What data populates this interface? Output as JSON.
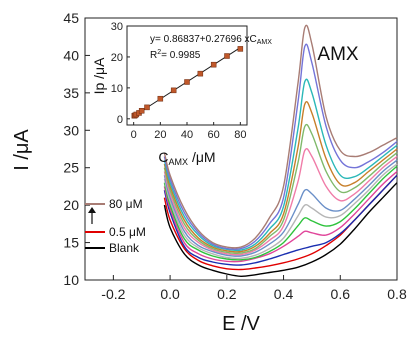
{
  "chart_data": [
    {
      "type": "line",
      "xlabel": "E /V",
      "ylabel": "I /μA",
      "xlim": [
        -0.3,
        0.8
      ],
      "ylim": [
        10,
        45
      ],
      "x_ticks": [
        "-0.2",
        "0.0",
        "0.2",
        "0.4",
        "0.6",
        "0.8"
      ],
      "y_ticks": [
        "10",
        "15",
        "20",
        "25",
        "30",
        "35",
        "40",
        "45"
      ],
      "annotation": "AMX",
      "legend": {
        "top": "80 μM",
        "middle": "0.5 μM",
        "bottom": "Blank",
        "arrow": "upward"
      },
      "series": [
        {
          "color": "#000000",
          "values": [
            [
              -0.02,
              20.0
            ],
            [
              0.0,
              17.0
            ],
            [
              0.05,
              13.5
            ],
            [
              0.1,
              12.0
            ],
            [
              0.15,
              11.3
            ],
            [
              0.2,
              10.8
            ],
            [
              0.25,
              10.5
            ],
            [
              0.3,
              10.7
            ],
            [
              0.35,
              11.0
            ],
            [
              0.4,
              11.3
            ],
            [
              0.45,
              11.7
            ],
            [
              0.5,
              12.4
            ],
            [
              0.55,
              13.4
            ],
            [
              0.6,
              14.8
            ],
            [
              0.65,
              16.8
            ],
            [
              0.7,
              19.0
            ],
            [
              0.75,
              21.0
            ],
            [
              0.8,
              23.0
            ]
          ]
        },
        {
          "color": "#e00000",
          "values": [
            [
              -0.02,
              21.0
            ],
            [
              0.0,
              18.0
            ],
            [
              0.05,
              14.2
            ],
            [
              0.1,
              12.6
            ],
            [
              0.15,
              11.9
            ],
            [
              0.2,
              11.5
            ],
            [
              0.25,
              11.4
            ],
            [
              0.3,
              11.6
            ],
            [
              0.35,
              11.9
            ],
            [
              0.4,
              12.3
            ],
            [
              0.45,
              12.8
            ],
            [
              0.5,
              13.5
            ],
            [
              0.55,
              14.6
            ],
            [
              0.6,
              16.0
            ],
            [
              0.65,
              18.0
            ],
            [
              0.7,
              20.0
            ],
            [
              0.75,
              22.0
            ],
            [
              0.8,
              24.0
            ]
          ]
        },
        {
          "color": "#1a2fb0",
          "values": [
            [
              -0.02,
              22.0
            ],
            [
              0.0,
              19.0
            ],
            [
              0.05,
              14.5
            ],
            [
              0.1,
              13.0
            ],
            [
              0.15,
              12.4
            ],
            [
              0.2,
              12.1
            ],
            [
              0.25,
              12.0
            ],
            [
              0.3,
              12.3
            ],
            [
              0.35,
              12.8
            ],
            [
              0.4,
              13.4
            ],
            [
              0.45,
              14.0
            ],
            [
              0.5,
              14.5
            ],
            [
              0.55,
              15.0
            ],
            [
              0.6,
              16.2
            ],
            [
              0.65,
              18.0
            ],
            [
              0.7,
              20.0
            ],
            [
              0.75,
              22.0
            ],
            [
              0.8,
              24.0
            ]
          ]
        },
        {
          "color": "#e0459a",
          "values": [
            [
              -0.02,
              22.5
            ],
            [
              0.0,
              19.5
            ],
            [
              0.05,
              15.0
            ],
            [
              0.1,
              13.5
            ],
            [
              0.15,
              12.8
            ],
            [
              0.2,
              12.5
            ],
            [
              0.25,
              12.5
            ],
            [
              0.3,
              12.9
            ],
            [
              0.35,
              13.5
            ],
            [
              0.4,
              14.5
            ],
            [
              0.45,
              15.8
            ],
            [
              0.475,
              16.5
            ],
            [
              0.5,
              16.3
            ],
            [
              0.55,
              16.0
            ],
            [
              0.6,
              17.0
            ],
            [
              0.65,
              18.8
            ],
            [
              0.7,
              20.8
            ],
            [
              0.75,
              22.8
            ],
            [
              0.8,
              24.5
            ]
          ]
        },
        {
          "color": "#2ec23c",
          "values": [
            [
              -0.02,
              23.0
            ],
            [
              0.0,
              20.0
            ],
            [
              0.05,
              15.5
            ],
            [
              0.1,
              14.0
            ],
            [
              0.15,
              13.2
            ],
            [
              0.2,
              12.8
            ],
            [
              0.25,
              12.7
            ],
            [
              0.3,
              13.0
            ],
            [
              0.35,
              13.8
            ],
            [
              0.4,
              15.0
            ],
            [
              0.45,
              17.2
            ],
            [
              0.475,
              18.3
            ],
            [
              0.5,
              17.9
            ],
            [
              0.55,
              17.2
            ],
            [
              0.6,
              17.8
            ],
            [
              0.65,
              19.5
            ],
            [
              0.7,
              21.5
            ],
            [
              0.75,
              23.5
            ],
            [
              0.8,
              25.2
            ]
          ]
        },
        {
          "color": "#b5b5b5",
          "values": [
            [
              -0.02,
              23.5
            ],
            [
              0.0,
              20.5
            ],
            [
              0.05,
              16.0
            ],
            [
              0.1,
              14.3
            ],
            [
              0.15,
              13.5
            ],
            [
              0.2,
              13.0
            ],
            [
              0.25,
              12.9
            ],
            [
              0.3,
              13.3
            ],
            [
              0.35,
              14.2
            ],
            [
              0.4,
              15.6
            ],
            [
              0.45,
              18.5
            ],
            [
              0.475,
              20.0
            ],
            [
              0.5,
              19.6
            ],
            [
              0.55,
              18.4
            ],
            [
              0.6,
              18.6
            ],
            [
              0.65,
              20.2
            ],
            [
              0.7,
              22.0
            ],
            [
              0.75,
              24.0
            ],
            [
              0.8,
              25.5
            ]
          ]
        },
        {
          "color": "#6a8fc8",
          "values": [
            [
              -0.02,
              24.0
            ],
            [
              0.0,
              21.0
            ],
            [
              0.05,
              16.5
            ],
            [
              0.1,
              14.6
            ],
            [
              0.15,
              13.8
            ],
            [
              0.2,
              13.3
            ],
            [
              0.25,
              13.2
            ],
            [
              0.3,
              13.7
            ],
            [
              0.35,
              14.8
            ],
            [
              0.4,
              16.4
            ],
            [
              0.45,
              20.0
            ],
            [
              0.475,
              22.0
            ],
            [
              0.5,
              21.5
            ],
            [
              0.55,
              19.6
            ],
            [
              0.6,
              19.3
            ],
            [
              0.65,
              20.8
            ],
            [
              0.7,
              22.6
            ],
            [
              0.75,
              24.5
            ],
            [
              0.8,
              26.0
            ]
          ]
        },
        {
          "color": "#f07ca8",
          "values": [
            [
              -0.02,
              24.5
            ],
            [
              0.0,
              21.5
            ],
            [
              0.05,
              17.0
            ],
            [
              0.1,
              15.0
            ],
            [
              0.15,
              14.0
            ],
            [
              0.2,
              13.5
            ],
            [
              0.25,
              13.4
            ],
            [
              0.3,
              14.0
            ],
            [
              0.35,
              15.3
            ],
            [
              0.4,
              17.2
            ],
            [
              0.45,
              23.0
            ],
            [
              0.475,
              27.3
            ],
            [
              0.5,
              26.5
            ],
            [
              0.55,
              22.5
            ],
            [
              0.6,
              20.6
            ],
            [
              0.65,
              21.5
            ],
            [
              0.7,
              23.2
            ],
            [
              0.75,
              25.0
            ],
            [
              0.8,
              26.5
            ]
          ]
        },
        {
          "color": "#7fb96a",
          "values": [
            [
              -0.02,
              25.0
            ],
            [
              0.0,
              22.0
            ],
            [
              0.05,
              17.5
            ],
            [
              0.1,
              15.3
            ],
            [
              0.15,
              14.2
            ],
            [
              0.2,
              13.7
            ],
            [
              0.25,
              13.6
            ],
            [
              0.3,
              14.2
            ],
            [
              0.35,
              15.8
            ],
            [
              0.4,
              18.0
            ],
            [
              0.45,
              25.5
            ],
            [
              0.475,
              30.5
            ],
            [
              0.5,
              29.5
            ],
            [
              0.55,
              24.5
            ],
            [
              0.6,
              21.8
            ],
            [
              0.65,
              22.3
            ],
            [
              0.7,
              23.8
            ],
            [
              0.75,
              25.5
            ],
            [
              0.8,
              27.0
            ]
          ]
        },
        {
          "color": "#c77f2a",
          "values": [
            [
              -0.02,
              25.5
            ],
            [
              0.0,
              22.5
            ],
            [
              0.05,
              18.0
            ],
            [
              0.1,
              15.6
            ],
            [
              0.15,
              14.4
            ],
            [
              0.2,
              13.9
            ],
            [
              0.25,
              13.8
            ],
            [
              0.3,
              14.5
            ],
            [
              0.35,
              16.2
            ],
            [
              0.4,
              18.8
            ],
            [
              0.45,
              27.5
            ],
            [
              0.475,
              33.5
            ],
            [
              0.5,
              32.3
            ],
            [
              0.55,
              26.2
            ],
            [
              0.6,
              22.8
            ],
            [
              0.65,
              23.0
            ],
            [
              0.7,
              24.5
            ],
            [
              0.75,
              26.0
            ],
            [
              0.8,
              27.5
            ]
          ]
        },
        {
          "color": "#2ab8b8",
          "values": [
            [
              -0.02,
              26.0
            ],
            [
              0.0,
              23.0
            ],
            [
              0.05,
              18.5
            ],
            [
              0.1,
              16.0
            ],
            [
              0.15,
              14.6
            ],
            [
              0.2,
              14.1
            ],
            [
              0.25,
              14.0
            ],
            [
              0.3,
              14.8
            ],
            [
              0.35,
              16.8
            ],
            [
              0.4,
              19.8
            ],
            [
              0.45,
              30.0
            ],
            [
              0.475,
              36.5
            ],
            [
              0.5,
              35.0
            ],
            [
              0.55,
              28.0
            ],
            [
              0.6,
              24.0
            ],
            [
              0.65,
              23.8
            ],
            [
              0.7,
              25.0
            ],
            [
              0.75,
              26.5
            ],
            [
              0.8,
              28.0
            ]
          ]
        },
        {
          "color": "#7474d8",
          "values": [
            [
              -0.02,
              26.5
            ],
            [
              0.0,
              23.5
            ],
            [
              0.05,
              19.0
            ],
            [
              0.1,
              16.3
            ],
            [
              0.15,
              14.8
            ],
            [
              0.2,
              14.2
            ],
            [
              0.25,
              14.2
            ],
            [
              0.3,
              15.2
            ],
            [
              0.35,
              17.5
            ],
            [
              0.4,
              21.0
            ],
            [
              0.45,
              33.5
            ],
            [
              0.475,
              41.2
            ],
            [
              0.5,
              39.0
            ],
            [
              0.55,
              30.5
            ],
            [
              0.6,
              26.0
            ],
            [
              0.65,
              25.0
            ],
            [
              0.7,
              25.8
            ],
            [
              0.75,
              27.0
            ],
            [
              0.8,
              28.5
            ]
          ]
        },
        {
          "color": "#a87c74",
          "values": [
            [
              -0.02,
              27.0
            ],
            [
              0.0,
              24.0
            ],
            [
              0.05,
              19.5
            ],
            [
              0.1,
              16.6
            ],
            [
              0.15,
              15.0
            ],
            [
              0.2,
              14.4
            ],
            [
              0.25,
              14.4
            ],
            [
              0.3,
              15.6
            ],
            [
              0.35,
              18.3
            ],
            [
              0.4,
              22.5
            ],
            [
              0.45,
              36.0
            ],
            [
              0.475,
              43.7
            ],
            [
              0.5,
              41.5
            ],
            [
              0.55,
              31.8
            ],
            [
              0.6,
              27.3
            ],
            [
              0.65,
              26.5
            ],
            [
              0.7,
              27.0
            ],
            [
              0.75,
              28.0
            ],
            [
              0.8,
              29.0
            ]
          ]
        }
      ]
    },
    {
      "type": "scatter",
      "xlabel_main": "C",
      "xlabel_sub": "AMX",
      "xlabel_unit": " /μM",
      "ylabel": "Ip /μA",
      "xlim": [
        -5,
        85
      ],
      "ylim": [
        -2,
        30
      ],
      "x_ticks": [
        "0",
        "20",
        "40",
        "60",
        "80"
      ],
      "y_ticks": [
        "0",
        "10",
        "20",
        "30"
      ],
      "equation_main": "y= 0.86837+0.27696 xC",
      "equation_sub": "AMX",
      "r2_prefix": "R",
      "r2_sup": "2",
      "r2_value": "= 0.9985",
      "marker_color": "#c0582a",
      "line_color": "#1a1a1a",
      "fit": {
        "intercept": 0.86837,
        "slope": 0.27696
      },
      "points": [
        [
          0.5,
          1.0
        ],
        [
          1,
          1.1
        ],
        [
          2,
          1.4
        ],
        [
          4,
          1.9
        ],
        [
          6,
          2.6
        ],
        [
          10,
          3.7
        ],
        [
          20,
          6.5
        ],
        [
          30,
          9.2
        ],
        [
          40,
          11.9
        ],
        [
          50,
          14.6
        ],
        [
          60,
          17.5
        ],
        [
          70,
          20.3
        ],
        [
          80,
          22.6
        ]
      ]
    }
  ]
}
